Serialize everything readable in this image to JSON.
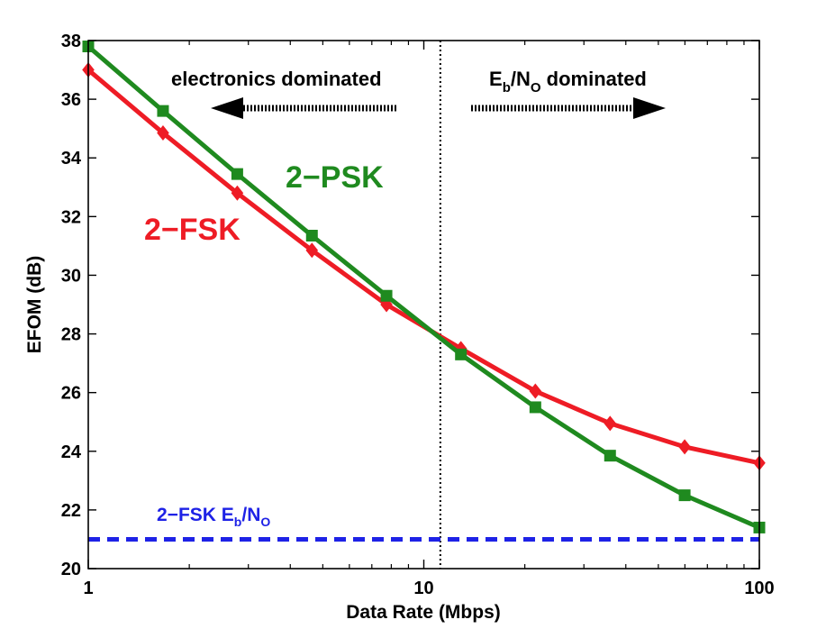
{
  "chart_data": {
    "type": "line",
    "xlabel": "Data Rate (Mbps)",
    "ylabel": "EFOM (dB)",
    "xscale": "log",
    "xlim": [
      1,
      100
    ],
    "ylim": [
      20,
      38
    ],
    "xticks": [
      1,
      10,
      100
    ],
    "xtick_labels": [
      "1",
      "10",
      "100"
    ],
    "yticks": [
      20,
      22,
      24,
      26,
      28,
      30,
      32,
      34,
      36,
      38
    ],
    "ytick_labels": [
      "20",
      "22",
      "24",
      "26",
      "28",
      "30",
      "32",
      "34",
      "36",
      "38"
    ],
    "grid": false,
    "series": [
      {
        "name": "2−FSK",
        "color": "#ee1c25",
        "marker": "diamond",
        "x": [
          1,
          1.67,
          2.78,
          4.64,
          7.74,
          12.9,
          21.5,
          35.9,
          59.9,
          100
        ],
        "y": [
          37.0,
          34.85,
          32.8,
          30.85,
          29.0,
          27.5,
          26.05,
          24.95,
          24.15,
          23.6
        ]
      },
      {
        "name": "2−PSK",
        "color": "#1f8a1f",
        "marker": "square",
        "x": [
          1,
          1.67,
          2.78,
          4.64,
          7.74,
          12.9,
          21.5,
          35.9,
          59.9,
          100
        ],
        "y": [
          37.8,
          35.6,
          33.45,
          31.35,
          29.3,
          27.3,
          25.5,
          23.85,
          22.5,
          21.4
        ]
      }
    ],
    "reference_line": {
      "label_parts": [
        "2−FSK E",
        "b",
        "/N",
        "O"
      ],
      "y": 21.0,
      "color": "#1e22e6",
      "style": "dashed"
    },
    "divider": {
      "x": 11.2,
      "style": "dotted"
    },
    "annotations": {
      "left_region": "electronics dominated",
      "right_region_parts": [
        "E",
        "b",
        "/N",
        "O",
        " dominated"
      ]
    }
  }
}
